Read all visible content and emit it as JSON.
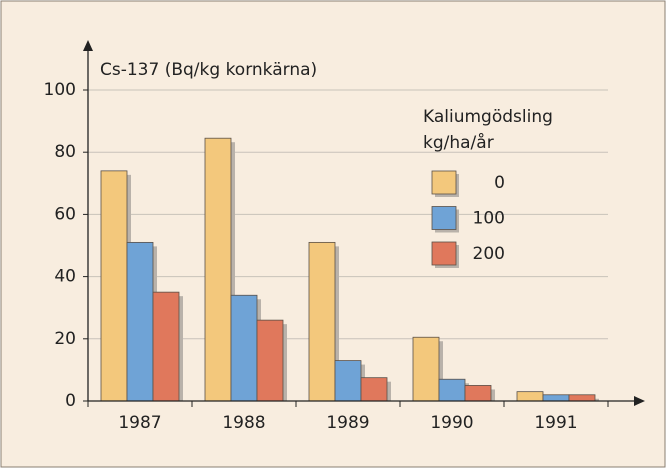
{
  "chart_data": {
    "type": "bar",
    "y_label": "Cs-137 (Bq/kg kornkärna)",
    "legend_title": [
      "Kaliumgödsling",
      "kg/ha/år"
    ],
    "categories": [
      "1987",
      "1988",
      "1989",
      "1990",
      "1991"
    ],
    "series": [
      {
        "name": "0",
        "color": "#f3c87c",
        "values": [
          74,
          84.5,
          51,
          20.5,
          3
        ]
      },
      {
        "name": "100",
        "color": "#6fa3d6",
        "values": [
          51,
          34,
          13,
          7,
          2
        ]
      },
      {
        "name": "200",
        "color": "#e0785c",
        "values": [
          35,
          26,
          7.5,
          5,
          2
        ]
      }
    ],
    "ylim": [
      0,
      100
    ],
    "yticks": [
      0,
      20,
      40,
      60,
      80,
      100
    ],
    "grid": true
  }
}
